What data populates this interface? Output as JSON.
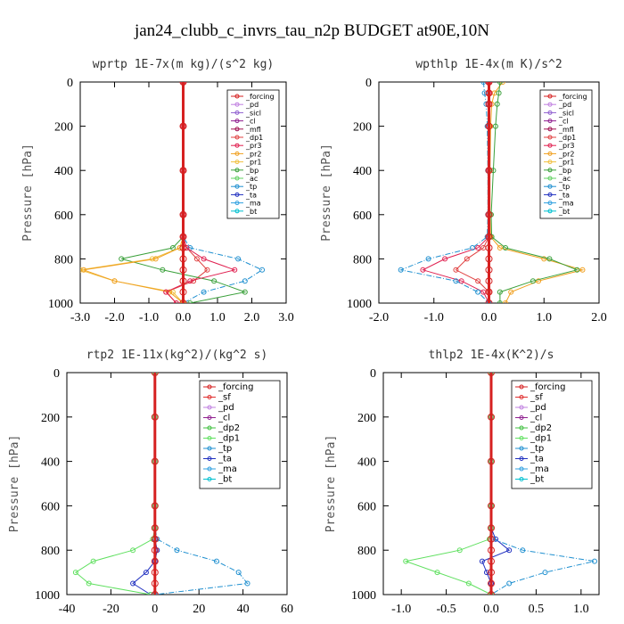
{
  "figure": {
    "title": "jan24_clubb_c_invrs_tau_n2p  BUDGET at90E,10N"
  },
  "colors": {
    "_forcing": "#d62020",
    "_pd": "#c080e0",
    "_sicl": "#9060d0",
    "_cl": "#902090",
    "_mfl": "#a01050",
    "_dp1": "#e04040",
    "_pr3": "#e02050",
    "_pr2": "#f0a020",
    "_pr1": "#f0c040",
    "_bp": "#3aa03a",
    "_ac": "#60d060",
    "_tp": "#2090d0",
    "_ta": "#2030c0",
    "_ma": "#30a0e0",
    "_bt": "#00c0d0",
    "_sf": "#e03030",
    "_dp2": "#40c040",
    "_dp1_g": "#60e060"
  },
  "chart_data": [
    {
      "type": "line",
      "title": "wprtp  1E-7x(m kg)/(s^2 kg)",
      "ylabel": "Pressure [hPa]",
      "xlim": [
        -3,
        3
      ],
      "ylim": [
        1000,
        0
      ],
      "xticks": [
        "-3.0",
        "-2.0",
        "-1.0",
        "0.0",
        "1.0",
        "2.0",
        "3.0"
      ],
      "yticks": [
        "0",
        "200",
        "400",
        "600",
        "800",
        "1000"
      ],
      "legend_position": "top-right",
      "legend": [
        "_forcing",
        "_pd",
        "_sicl",
        "_cl",
        "_mfl",
        "_dp1",
        "_pr3",
        "_pr2",
        "_pr1",
        "_bp",
        "_ac",
        "_tp",
        "_ta",
        "_ma",
        "_bt"
      ],
      "pressure": [
        0,
        200,
        400,
        600,
        700,
        750,
        800,
        850,
        900,
        950,
        1000
      ],
      "series": [
        {
          "name": "_forcing",
          "values": [
            0,
            0,
            0,
            0,
            0,
            0,
            0,
            0,
            0,
            0,
            0
          ]
        },
        {
          "name": "_pr3",
          "values": [
            0,
            0,
            0,
            0,
            0,
            0.1,
            0.6,
            1.5,
            0.2,
            -0.5,
            -0.2
          ]
        },
        {
          "name": "_pr2",
          "values": [
            0,
            0,
            0,
            0,
            0,
            -0.1,
            -0.8,
            -2.9,
            -2.0,
            -0.4,
            0
          ]
        },
        {
          "name": "_pr1",
          "values": [
            0,
            0,
            0,
            0,
            0,
            -0.1,
            -0.9,
            -3.0,
            -2.0,
            -0.3,
            0
          ]
        },
        {
          "name": "_bp",
          "values": [
            0,
            0,
            0,
            0,
            0,
            -0.3,
            -1.8,
            -0.6,
            0.9,
            1.8,
            0.2
          ]
        },
        {
          "name": "_tp",
          "values": [
            0,
            0,
            0,
            0,
            0,
            0.2,
            1.6,
            2.3,
            1.8,
            0.6,
            0
          ]
        },
        {
          "name": "_dp1",
          "values": [
            0,
            0,
            0,
            0,
            0,
            0.1,
            0.4,
            0.7,
            0.3,
            -0.5,
            -0.2
          ]
        }
      ]
    },
    {
      "type": "line",
      "title": "wpthlp  1E-4x(m K)/s^2",
      "ylabel": "Pressure [hPa]",
      "xlim": [
        -2,
        2
      ],
      "ylim": [
        1000,
        0
      ],
      "xticks": [
        "-2.0",
        "-1.0",
        "0.0",
        "1.0",
        "2.0"
      ],
      "yticks": [
        "0",
        "200",
        "400",
        "600",
        "800",
        "1000"
      ],
      "legend_position": "top-right",
      "legend": [
        "_forcing",
        "_pd",
        "_sicl",
        "_cl",
        "_mfl",
        "_dp1",
        "_pr3",
        "_pr2",
        "_pr1",
        "_bp",
        "_ac",
        "_tp",
        "_ta",
        "_ma",
        "_bt"
      ],
      "pressure": [
        0,
        50,
        100,
        200,
        400,
        600,
        700,
        750,
        800,
        850,
        900,
        950,
        1000
      ],
      "series": [
        {
          "name": "_forcing",
          "values": [
            0,
            0,
            0,
            0,
            0,
            0,
            0,
            0,
            0,
            0,
            0,
            0,
            0
          ]
        },
        {
          "name": "_bp",
          "values": [
            0.2,
            0.18,
            0.15,
            0.12,
            0.08,
            0.04,
            0.05,
            0.3,
            1.1,
            1.6,
            0.8,
            0.2,
            0.2
          ]
        },
        {
          "name": "_pr2",
          "values": [
            0.25,
            0.1,
            0.05,
            0.03,
            0.02,
            0.02,
            0.03,
            0.2,
            1.0,
            1.7,
            0.9,
            0.4,
            0.3
          ]
        },
        {
          "name": "_tp",
          "values": [
            -0.1,
            -0.08,
            -0.05,
            -0.03,
            -0.02,
            -0.02,
            -0.03,
            -0.3,
            -1.1,
            -1.6,
            -0.6,
            -0.2,
            0
          ]
        },
        {
          "name": "_pr3",
          "values": [
            0,
            0,
            0,
            0,
            0,
            0,
            0,
            -0.2,
            -0.8,
            -1.2,
            -0.5,
            -0.1,
            0
          ]
        },
        {
          "name": "_dp1",
          "values": [
            0,
            0,
            0,
            0,
            0,
            0,
            0,
            -0.1,
            -0.4,
            -0.6,
            -0.2,
            0,
            0
          ]
        }
      ]
    },
    {
      "type": "line",
      "title": "rtp2  1E-11x(kg^2)/(kg^2 s)",
      "ylabel": "Pressure [hPa]",
      "xlim": [
        -40,
        60
      ],
      "ylim": [
        1000,
        0
      ],
      "xticks": [
        "-40",
        "-20",
        "0",
        "20",
        "40",
        "60"
      ],
      "yticks": [
        "0",
        "200",
        "400",
        "600",
        "800",
        "1000"
      ],
      "legend_position": "top-right",
      "legend": [
        "_forcing",
        "_sf",
        "_pd",
        "_cl",
        "_dp2",
        "_dp1",
        "_tp",
        "_ta",
        "_ma",
        "_bt"
      ],
      "pressure": [
        0,
        200,
        400,
        600,
        700,
        750,
        800,
        850,
        900,
        950,
        1000
      ],
      "series": [
        {
          "name": "_forcing",
          "values": [
            0,
            0,
            0,
            0,
            0,
            0,
            0,
            0,
            0,
            0,
            0
          ]
        },
        {
          "name": "_dp1",
          "values": [
            0,
            0,
            0,
            0,
            0,
            -1,
            -10,
            -28,
            -36,
            -30,
            -2
          ]
        },
        {
          "name": "_tp",
          "values": [
            0,
            0,
            0,
            0,
            0,
            1,
            10,
            28,
            38,
            42,
            0
          ]
        },
        {
          "name": "_ta",
          "values": [
            0,
            0,
            0,
            0,
            0,
            0,
            1,
            0,
            -4,
            -10,
            -2
          ]
        }
      ]
    },
    {
      "type": "line",
      "title": "thlp2  1E-4x(K^2)/s",
      "ylabel": "Pressure [hPa]",
      "xlim": [
        -1.2,
        1.2
      ],
      "ylim": [
        1000,
        0
      ],
      "xticks": [
        "-1.0",
        "-0.5",
        "0.0",
        "0.5",
        "1.0"
      ],
      "yticks": [
        "0",
        "200",
        "400",
        "600",
        "800",
        "1000"
      ],
      "legend_position": "top-right",
      "legend": [
        "_forcing",
        "_sf",
        "_pd",
        "_cl",
        "_dp2",
        "_dp1",
        "_tp",
        "_ta",
        "_ma",
        "_bt"
      ],
      "pressure": [
        0,
        200,
        400,
        600,
        700,
        750,
        800,
        850,
        900,
        950,
        1000
      ],
      "series": [
        {
          "name": "_forcing",
          "values": [
            0,
            0,
            0,
            0,
            0,
            0,
            0,
            0,
            0,
            0,
            0
          ]
        },
        {
          "name": "_dp1",
          "values": [
            0,
            0,
            0,
            0,
            0,
            -0.02,
            -0.35,
            -0.95,
            -0.6,
            -0.25,
            0
          ]
        },
        {
          "name": "_tp",
          "values": [
            0,
            0,
            0,
            0,
            0,
            0.02,
            0.35,
            1.15,
            0.6,
            0.2,
            0
          ]
        },
        {
          "name": "_ta",
          "values": [
            0,
            0,
            0,
            0,
            0,
            0.05,
            0.2,
            -0.1,
            -0.05,
            0,
            0
          ]
        }
      ]
    }
  ]
}
